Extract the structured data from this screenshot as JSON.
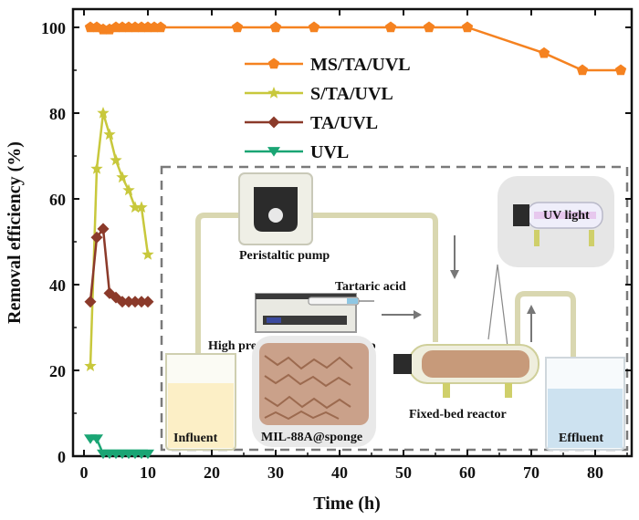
{
  "chart_data": {
    "type": "line",
    "xlabel": "Time (h)",
    "ylabel": "Removal efficiency (%)",
    "xlim": [
      0,
      85
    ],
    "ylim": [
      0,
      103
    ],
    "xticks": [
      0,
      10,
      20,
      30,
      40,
      50,
      60,
      70,
      80
    ],
    "yticks": [
      0,
      20,
      40,
      60,
      80,
      100
    ],
    "legend_position": "upper-center",
    "series": [
      {
        "name": "MS/TA/UVL",
        "color": "#f58220",
        "marker": "pentagon",
        "x": [
          1,
          2,
          3,
          4,
          5,
          6,
          7,
          8,
          9,
          10,
          11,
          12,
          24,
          30,
          36,
          48,
          54,
          60,
          72,
          78,
          84
        ],
        "y": [
          100,
          100,
          99.5,
          99.5,
          100,
          100,
          100,
          100,
          100,
          100,
          100,
          100,
          100,
          100,
          100,
          100,
          100,
          100,
          94,
          90,
          90
        ]
      },
      {
        "name": "S/TA/UVL",
        "color": "#c8c83c",
        "marker": "star",
        "x": [
          1,
          2,
          3,
          4,
          5,
          6,
          7,
          8,
          9,
          10
        ],
        "y": [
          21,
          67,
          80,
          75,
          69,
          65,
          62,
          58,
          58,
          47
        ]
      },
      {
        "name": "TA/UVL",
        "color": "#8b3a2a",
        "marker": "diamond",
        "x": [
          1,
          2,
          3,
          4,
          5,
          6,
          7,
          8,
          9,
          10
        ],
        "y": [
          36,
          51,
          53,
          38,
          37,
          36,
          36,
          36,
          36,
          36
        ]
      },
      {
        "name": "UVL",
        "color": "#1aa574",
        "marker": "triangle-down",
        "x": [
          1,
          2,
          3,
          4,
          5,
          6,
          7,
          8,
          9,
          10
        ],
        "y": [
          4,
          4,
          0.5,
          0.5,
          0.5,
          0.5,
          0.5,
          0.5,
          0.5,
          0.5
        ]
      }
    ]
  },
  "inset": {
    "labels": {
      "peristaltic_pump": "Peristaltic pump",
      "tartaric_acid": "Tartaric acid",
      "injection_pump": "High precision ingection pump",
      "uv_light": "UV light",
      "sponge": "MIL-88A@sponge",
      "reactor": "Fixed-bed reactor",
      "influent": "Influent",
      "effluent": "Effluent"
    },
    "colors": {
      "tube": "#d9d7b0",
      "influent_liquid": "#fcefc6",
      "effluent_liquid": "#cde2f0",
      "reactor_body": "#c79a7a",
      "sponge": "#c49479",
      "dash_border": "#7a7a7a"
    }
  }
}
